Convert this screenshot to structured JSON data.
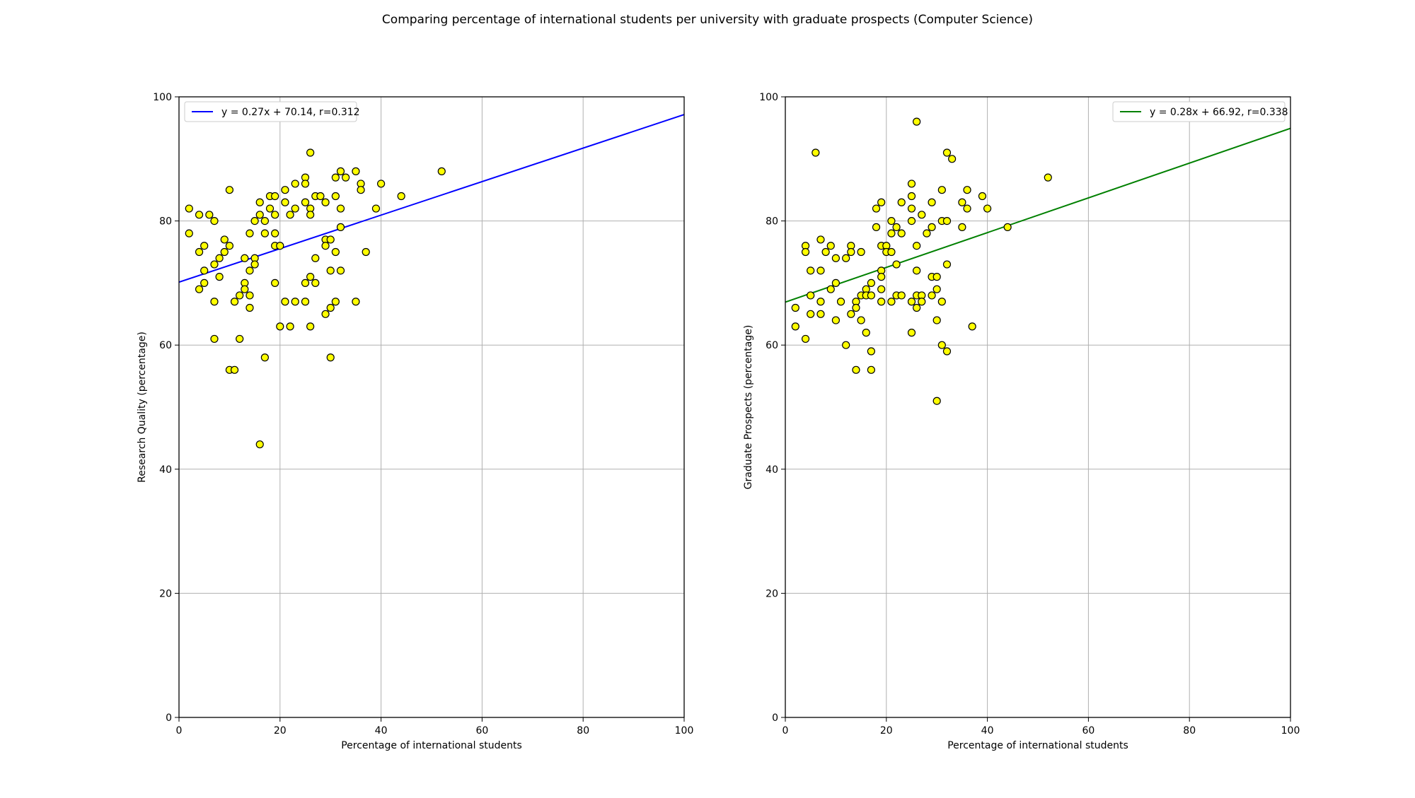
{
  "figure": {
    "suptitle": "Comparing percentage of international students per university with graduate prospects (Computer Science)"
  },
  "colors": {
    "point_fill": "#ffff00",
    "point_stroke": "#000000",
    "grid": "#b0b0b0"
  },
  "chart_data": [
    {
      "type": "scatter",
      "title": "",
      "xlabel": "Percentage of international students",
      "ylabel": "Research Quality (percentage)",
      "xlim": [
        0,
        100
      ],
      "ylim": [
        0,
        100
      ],
      "xticks": [
        0,
        20,
        40,
        60,
        80,
        100
      ],
      "yticks": [
        0,
        20,
        40,
        60,
        80,
        100
      ],
      "grid": true,
      "legend_position": "upper-left",
      "fit_line": {
        "label": "y = 0.27x + 70.14, r=0.312",
        "slope": 0.27,
        "intercept": 70.14,
        "color": "#0000ff"
      },
      "points": [
        [
          2,
          82
        ],
        [
          2,
          78
        ],
        [
          4,
          81
        ],
        [
          4,
          75
        ],
        [
          4,
          69
        ],
        [
          5,
          76
        ],
        [
          5,
          72
        ],
        [
          5,
          70
        ],
        [
          6,
          81
        ],
        [
          7,
          80
        ],
        [
          7,
          73
        ],
        [
          7,
          67
        ],
        [
          7,
          61
        ],
        [
          8,
          74
        ],
        [
          8,
          71
        ],
        [
          9,
          77
        ],
        [
          9,
          75
        ],
        [
          10,
          85
        ],
        [
          10,
          76
        ],
        [
          10,
          56
        ],
        [
          11,
          67
        ],
        [
          11,
          56
        ],
        [
          12,
          68
        ],
        [
          12,
          61
        ],
        [
          13,
          74
        ],
        [
          13,
          70
        ],
        [
          13,
          69
        ],
        [
          14,
          78
        ],
        [
          14,
          72
        ],
        [
          14,
          68
        ],
        [
          14,
          66
        ],
        [
          15,
          80
        ],
        [
          15,
          74
        ],
        [
          15,
          73
        ],
        [
          16,
          83
        ],
        [
          16,
          81
        ],
        [
          16,
          44
        ],
        [
          17,
          80
        ],
        [
          17,
          78
        ],
        [
          17,
          58
        ],
        [
          18,
          84
        ],
        [
          18,
          82
        ],
        [
          19,
          84
        ],
        [
          19,
          81
        ],
        [
          19,
          78
        ],
        [
          19,
          76
        ],
        [
          19,
          70
        ],
        [
          20,
          76
        ],
        [
          20,
          63
        ],
        [
          21,
          85
        ],
        [
          21,
          83
        ],
        [
          21,
          67
        ],
        [
          22,
          81
        ],
        [
          22,
          63
        ],
        [
          23,
          86
        ],
        [
          23,
          82
        ],
        [
          23,
          67
        ],
        [
          25,
          87
        ],
        [
          25,
          86
        ],
        [
          25,
          83
        ],
        [
          25,
          70
        ],
        [
          25,
          67
        ],
        [
          26,
          91
        ],
        [
          26,
          82
        ],
        [
          26,
          81
        ],
        [
          26,
          71
        ],
        [
          26,
          63
        ],
        [
          27,
          84
        ],
        [
          27,
          74
        ],
        [
          27,
          70
        ],
        [
          28,
          84
        ],
        [
          29,
          83
        ],
        [
          29,
          77
        ],
        [
          29,
          76
        ],
        [
          29,
          65
        ],
        [
          30,
          77
        ],
        [
          30,
          72
        ],
        [
          30,
          66
        ],
        [
          30,
          58
        ],
        [
          31,
          87
        ],
        [
          31,
          84
        ],
        [
          31,
          75
        ],
        [
          31,
          67
        ],
        [
          32,
          88
        ],
        [
          32,
          82
        ],
        [
          32,
          79
        ],
        [
          32,
          72
        ],
        [
          33,
          87
        ],
        [
          35,
          88
        ],
        [
          35,
          67
        ],
        [
          36,
          86
        ],
        [
          36,
          85
        ],
        [
          37,
          75
        ],
        [
          39,
          82
        ],
        [
          40,
          86
        ],
        [
          44,
          84
        ],
        [
          52,
          88
        ]
      ]
    },
    {
      "type": "scatter",
      "title": "",
      "xlabel": "Percentage of international students",
      "ylabel": "Graduate Prospects (percentage)",
      "xlim": [
        0,
        100
      ],
      "ylim": [
        0,
        100
      ],
      "xticks": [
        0,
        20,
        40,
        60,
        80,
        100
      ],
      "yticks": [
        0,
        20,
        40,
        60,
        80,
        100
      ],
      "grid": true,
      "legend_position": "upper-right",
      "fit_line": {
        "label": "y = 0.28x + 66.92, r=0.338",
        "slope": 0.28,
        "intercept": 66.92,
        "color": "#008000"
      },
      "points": [
        [
          2,
          66
        ],
        [
          2,
          63
        ],
        [
          4,
          76
        ],
        [
          4,
          75
        ],
        [
          4,
          61
        ],
        [
          5,
          72
        ],
        [
          5,
          68
        ],
        [
          5,
          65
        ],
        [
          6,
          91
        ],
        [
          7,
          77
        ],
        [
          7,
          72
        ],
        [
          7,
          67
        ],
        [
          7,
          65
        ],
        [
          8,
          75
        ],
        [
          9,
          76
        ],
        [
          9,
          69
        ],
        [
          10,
          74
        ],
        [
          10,
          70
        ],
        [
          10,
          64
        ],
        [
          11,
          67
        ],
        [
          12,
          74
        ],
        [
          12,
          60
        ],
        [
          13,
          76
        ],
        [
          13,
          75
        ],
        [
          13,
          65
        ],
        [
          14,
          67
        ],
        [
          14,
          66
        ],
        [
          14,
          56
        ],
        [
          15,
          75
        ],
        [
          15,
          68
        ],
        [
          15,
          64
        ],
        [
          16,
          69
        ],
        [
          16,
          68
        ],
        [
          16,
          62
        ],
        [
          17,
          70
        ],
        [
          17,
          68
        ],
        [
          17,
          59
        ],
        [
          17,
          56
        ],
        [
          18,
          82
        ],
        [
          18,
          79
        ],
        [
          19,
          83
        ],
        [
          19,
          76
        ],
        [
          19,
          72
        ],
        [
          19,
          71
        ],
        [
          19,
          69
        ],
        [
          19,
          67
        ],
        [
          20,
          76
        ],
        [
          20,
          75
        ],
        [
          21,
          80
        ],
        [
          21,
          78
        ],
        [
          21,
          75
        ],
        [
          21,
          67
        ],
        [
          22,
          79
        ],
        [
          22,
          73
        ],
        [
          22,
          68
        ],
        [
          23,
          83
        ],
        [
          23,
          78
        ],
        [
          23,
          68
        ],
        [
          25,
          86
        ],
        [
          25,
          84
        ],
        [
          25,
          82
        ],
        [
          25,
          80
        ],
        [
          25,
          67
        ],
        [
          25,
          62
        ],
        [
          26,
          96
        ],
        [
          26,
          76
        ],
        [
          26,
          72
        ],
        [
          26,
          68
        ],
        [
          26,
          66
        ],
        [
          27,
          81
        ],
        [
          27,
          68
        ],
        [
          27,
          67
        ],
        [
          28,
          78
        ],
        [
          29,
          83
        ],
        [
          29,
          79
        ],
        [
          29,
          71
        ],
        [
          29,
          68
        ],
        [
          30,
          71
        ],
        [
          30,
          69
        ],
        [
          30,
          64
        ],
        [
          30,
          51
        ],
        [
          31,
          85
        ],
        [
          31,
          80
        ],
        [
          31,
          67
        ],
        [
          31,
          60
        ],
        [
          32,
          91
        ],
        [
          32,
          80
        ],
        [
          32,
          73
        ],
        [
          32,
          59
        ],
        [
          33,
          90
        ],
        [
          35,
          83
        ],
        [
          35,
          79
        ],
        [
          36,
          85
        ],
        [
          36,
          82
        ],
        [
          37,
          63
        ],
        [
          39,
          84
        ],
        [
          40,
          82
        ],
        [
          44,
          79
        ],
        [
          52,
          87
        ]
      ]
    }
  ]
}
